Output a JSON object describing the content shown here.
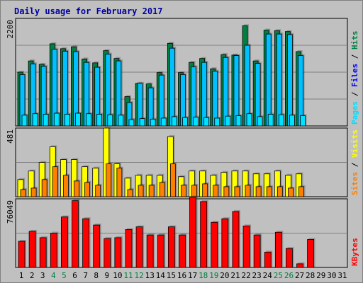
{
  "title": "Daily usage for February 2017",
  "colors": {
    "hits": "#008040",
    "files": "#00c0ff",
    "pages": "#00e0ff",
    "sites": "#ff8000",
    "visits": "#ffff00",
    "kbytes": "#ff0000",
    "weekend_day": "#008040",
    "weekday": "#000000",
    "bg": "#c0c0c0"
  },
  "chart_data": {
    "type": "bar",
    "categories": [
      "1",
      "2",
      "3",
      "4",
      "5",
      "6",
      "7",
      "8",
      "9",
      "10",
      "11",
      "12",
      "13",
      "14",
      "15",
      "16",
      "17",
      "18",
      "19",
      "20",
      "21",
      "22",
      "23",
      "24",
      "25",
      "26",
      "27",
      "28",
      "29",
      "30",
      "31"
    ],
    "weekend_days": [
      4,
      5,
      11,
      12,
      18,
      19,
      25,
      26
    ],
    "panels": [
      {
        "name": "hits-files-pages",
        "ymax": 2200,
        "ymax_label": "2200",
        "side_label": [
          {
            "text": "Pages",
            "color": "#00e0ff"
          },
          {
            "text": " / ",
            "color": "#000000"
          },
          {
            "text": "Files",
            "color": "#0000ff"
          },
          {
            "text": " / ",
            "color": "#000000"
          },
          {
            "text": "Hits",
            "color": "#008040"
          }
        ],
        "series": [
          {
            "name": "Hits",
            "values": [
              1100,
              1330,
              1260,
              1680,
              1580,
              1620,
              1370,
              1290,
              1540,
              1380,
              600,
              870,
              860,
              1090,
              1690,
              1090,
              1300,
              1380,
              1170,
              1460,
              1450,
              2050,
              1330,
              1960,
              1950,
              1930,
              1520,
              0,
              0,
              0,
              0
            ]
          },
          {
            "name": "Files",
            "values": [
              1050,
              1270,
              1220,
              1570,
              1530,
              1520,
              1300,
              1200,
              1470,
              1330,
              480,
              870,
              780,
              1040,
              1590,
              1050,
              1210,
              1300,
              1120,
              1400,
              1440,
              1650,
              1280,
              1880,
              1880,
              1870,
              1440,
              0,
              0,
              0,
              0
            ]
          },
          {
            "name": "Pages",
            "values": [
              220,
              250,
              240,
              260,
              240,
              260,
              250,
              240,
              230,
              220,
              130,
              150,
              140,
              160,
              190,
              170,
              180,
              170,
              160,
              200,
              210,
              250,
              190,
              240,
              230,
              220,
              210,
              0,
              0,
              0,
              0
            ]
          }
        ]
      },
      {
        "name": "visits-sites",
        "ymax": 481,
        "ymax_label": "481",
        "side_label": [
          {
            "text": "Sites",
            "color": "#ff8000"
          },
          {
            "text": " / ",
            "color": "#000000"
          },
          {
            "text": "Visits",
            "color": "#ffff00"
          }
        ],
        "series": [
          {
            "name": "Visits",
            "values": [
              120,
              180,
              240,
              350,
              260,
              260,
              210,
              200,
              481,
              230,
              130,
              150,
              150,
              150,
              421,
              140,
              180,
              180,
              150,
              170,
              180,
              180,
              160,
              160,
              180,
              150,
              160,
              0,
              0,
              0,
              0
            ]
          },
          {
            "name": "Sites",
            "values": [
              50,
              60,
              120,
              210,
              150,
              110,
              100,
              80,
              230,
              200,
              50,
              80,
              80,
              100,
              230,
              80,
              80,
              90,
              80,
              70,
              70,
              80,
              70,
              70,
              70,
              60,
              70,
              0,
              0,
              0,
              0
            ]
          }
        ]
      },
      {
        "name": "kbytes",
        "ymax": 76049,
        "ymax_label": "76049",
        "side_label": [
          {
            "text": "KBytes",
            "color": "#ff0000"
          }
        ],
        "series": [
          {
            "name": "KBytes",
            "values": [
              29000,
              40000,
              33000,
              38000,
              56000,
              74000,
              54000,
              47000,
              32000,
              33000,
              42000,
              45000,
              36000,
              36000,
              45000,
              36000,
              78000,
              73000,
              50000,
              54000,
              62000,
              46000,
              36000,
              17000,
              39000,
              21000,
              4000,
              31000,
              0,
              0,
              0
            ]
          }
        ]
      }
    ]
  }
}
